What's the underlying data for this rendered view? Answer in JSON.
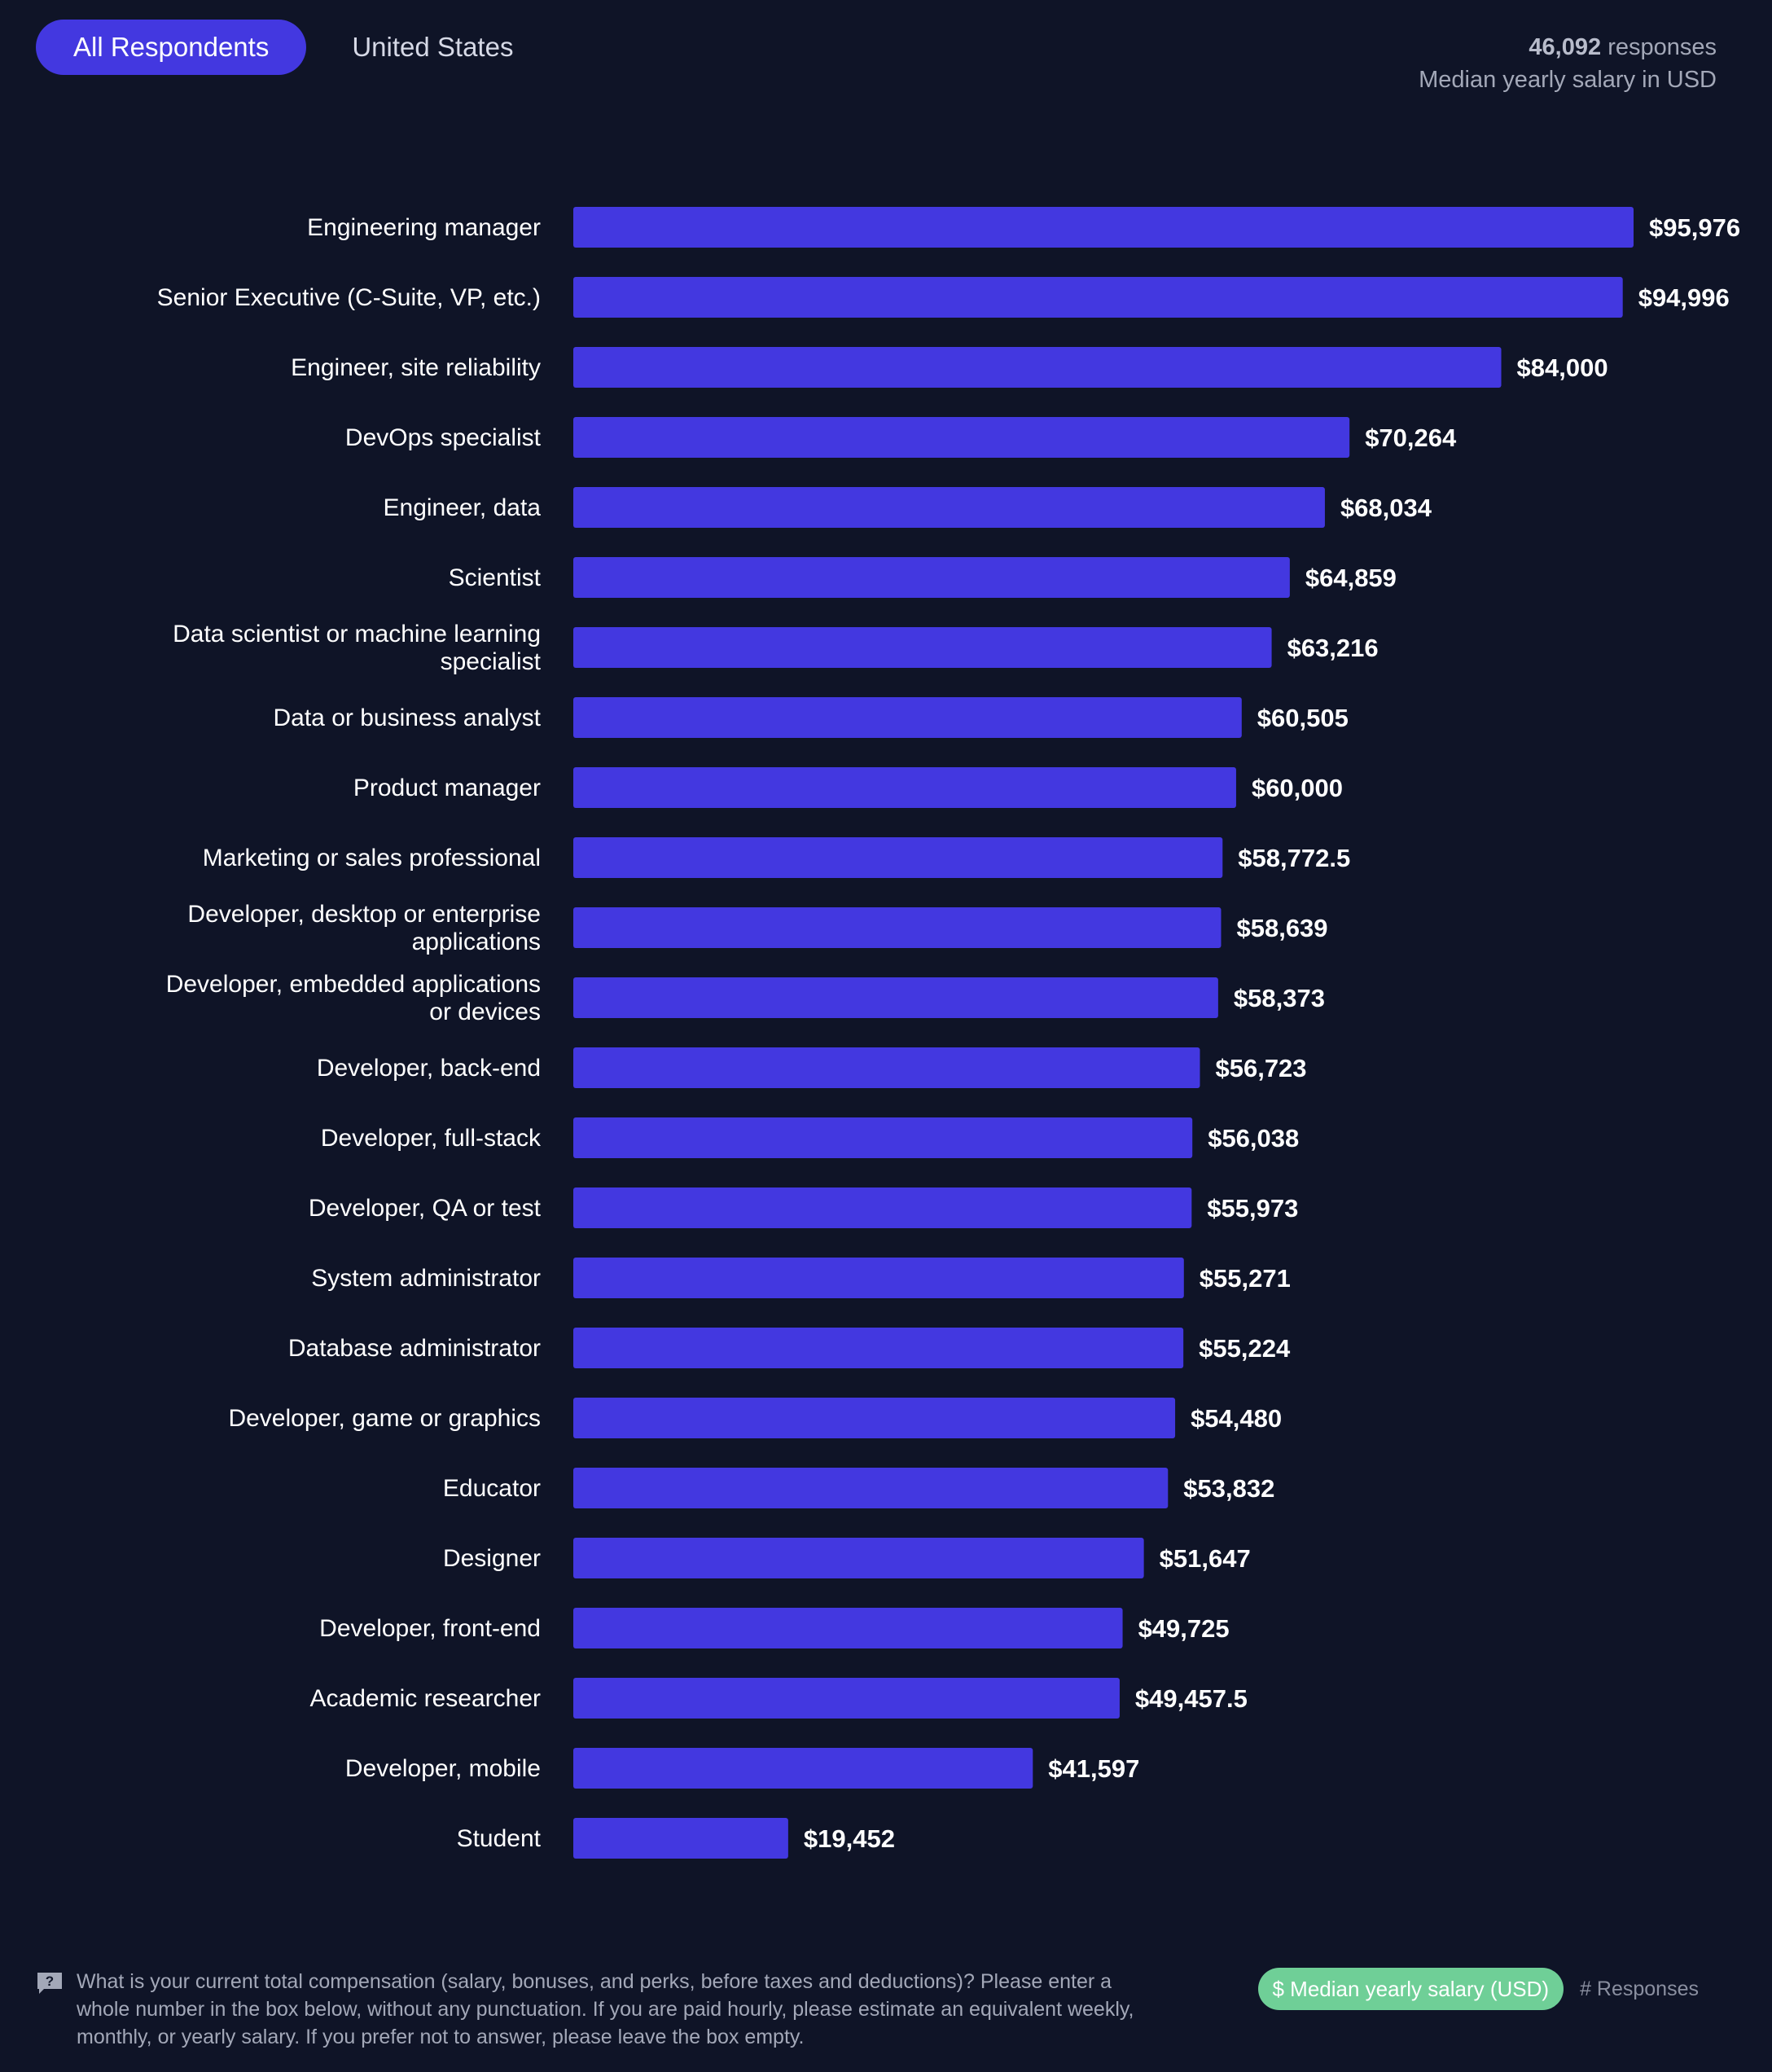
{
  "tabs": [
    {
      "label": "All Respondents",
      "active": true
    },
    {
      "label": "United States",
      "active": false
    }
  ],
  "meta": {
    "responses_count": "46,092",
    "responses_word": "responses",
    "subtitle": "Median yearly salary in USD"
  },
  "chart_data": {
    "type": "bar",
    "orientation": "horizontal",
    "categories": [
      "Engineering manager",
      "Senior Executive (C-Suite, VP, etc.)",
      "Engineer, site reliability",
      "DevOps specialist",
      "Engineer, data",
      "Scientist",
      "Data scientist or machine learning specialist",
      "Data or business analyst",
      "Product manager",
      "Marketing or sales professional",
      "Developer, desktop or enterprise applications",
      "Developer, embedded applications or devices",
      "Developer, back-end",
      "Developer, full-stack",
      "Developer, QA or test",
      "System administrator",
      "Database administrator",
      "Developer, game or graphics",
      "Educator",
      "Designer",
      "Developer, front-end",
      "Academic researcher",
      "Developer, mobile",
      "Student"
    ],
    "values": [
      95976,
      94996,
      84000,
      70264,
      68034,
      64859,
      63216,
      60505,
      60000,
      58772.5,
      58639,
      58373,
      56723,
      56038,
      55973,
      55271,
      55224,
      54480,
      53832,
      51647,
      49725,
      49457.5,
      41597,
      19452
    ],
    "value_labels": [
      "$95,976",
      "$94,996",
      "$84,000",
      "$70,264",
      "$68,034",
      "$64,859",
      "$63,216",
      "$60,505",
      "$60,000",
      "$58,772.5",
      "$58,639",
      "$58,373",
      "$56,723",
      "$56,038",
      "$55,973",
      "$55,271",
      "$55,224",
      "$54,480",
      "$53,832",
      "$51,647",
      "$49,725",
      "$49,457.5",
      "$41,597",
      "$19,452"
    ],
    "xlim": [
      0,
      95976
    ],
    "grid": false,
    "bar_color": "#4338e0"
  },
  "footer": {
    "question": "What is your current total compensation (salary, bonuses, and perks, before taxes and deductions)? Please enter a whole number in the box below, without any punctuation. If you are paid hourly, please estimate an equivalent weekly, monthly, or yearly salary. If you prefer not to answer, please leave the box empty.",
    "legend_active": "$ Median yearly salary (USD)",
    "legend_inactive": "# Responses",
    "legend_active_color": "#6fcf97"
  }
}
